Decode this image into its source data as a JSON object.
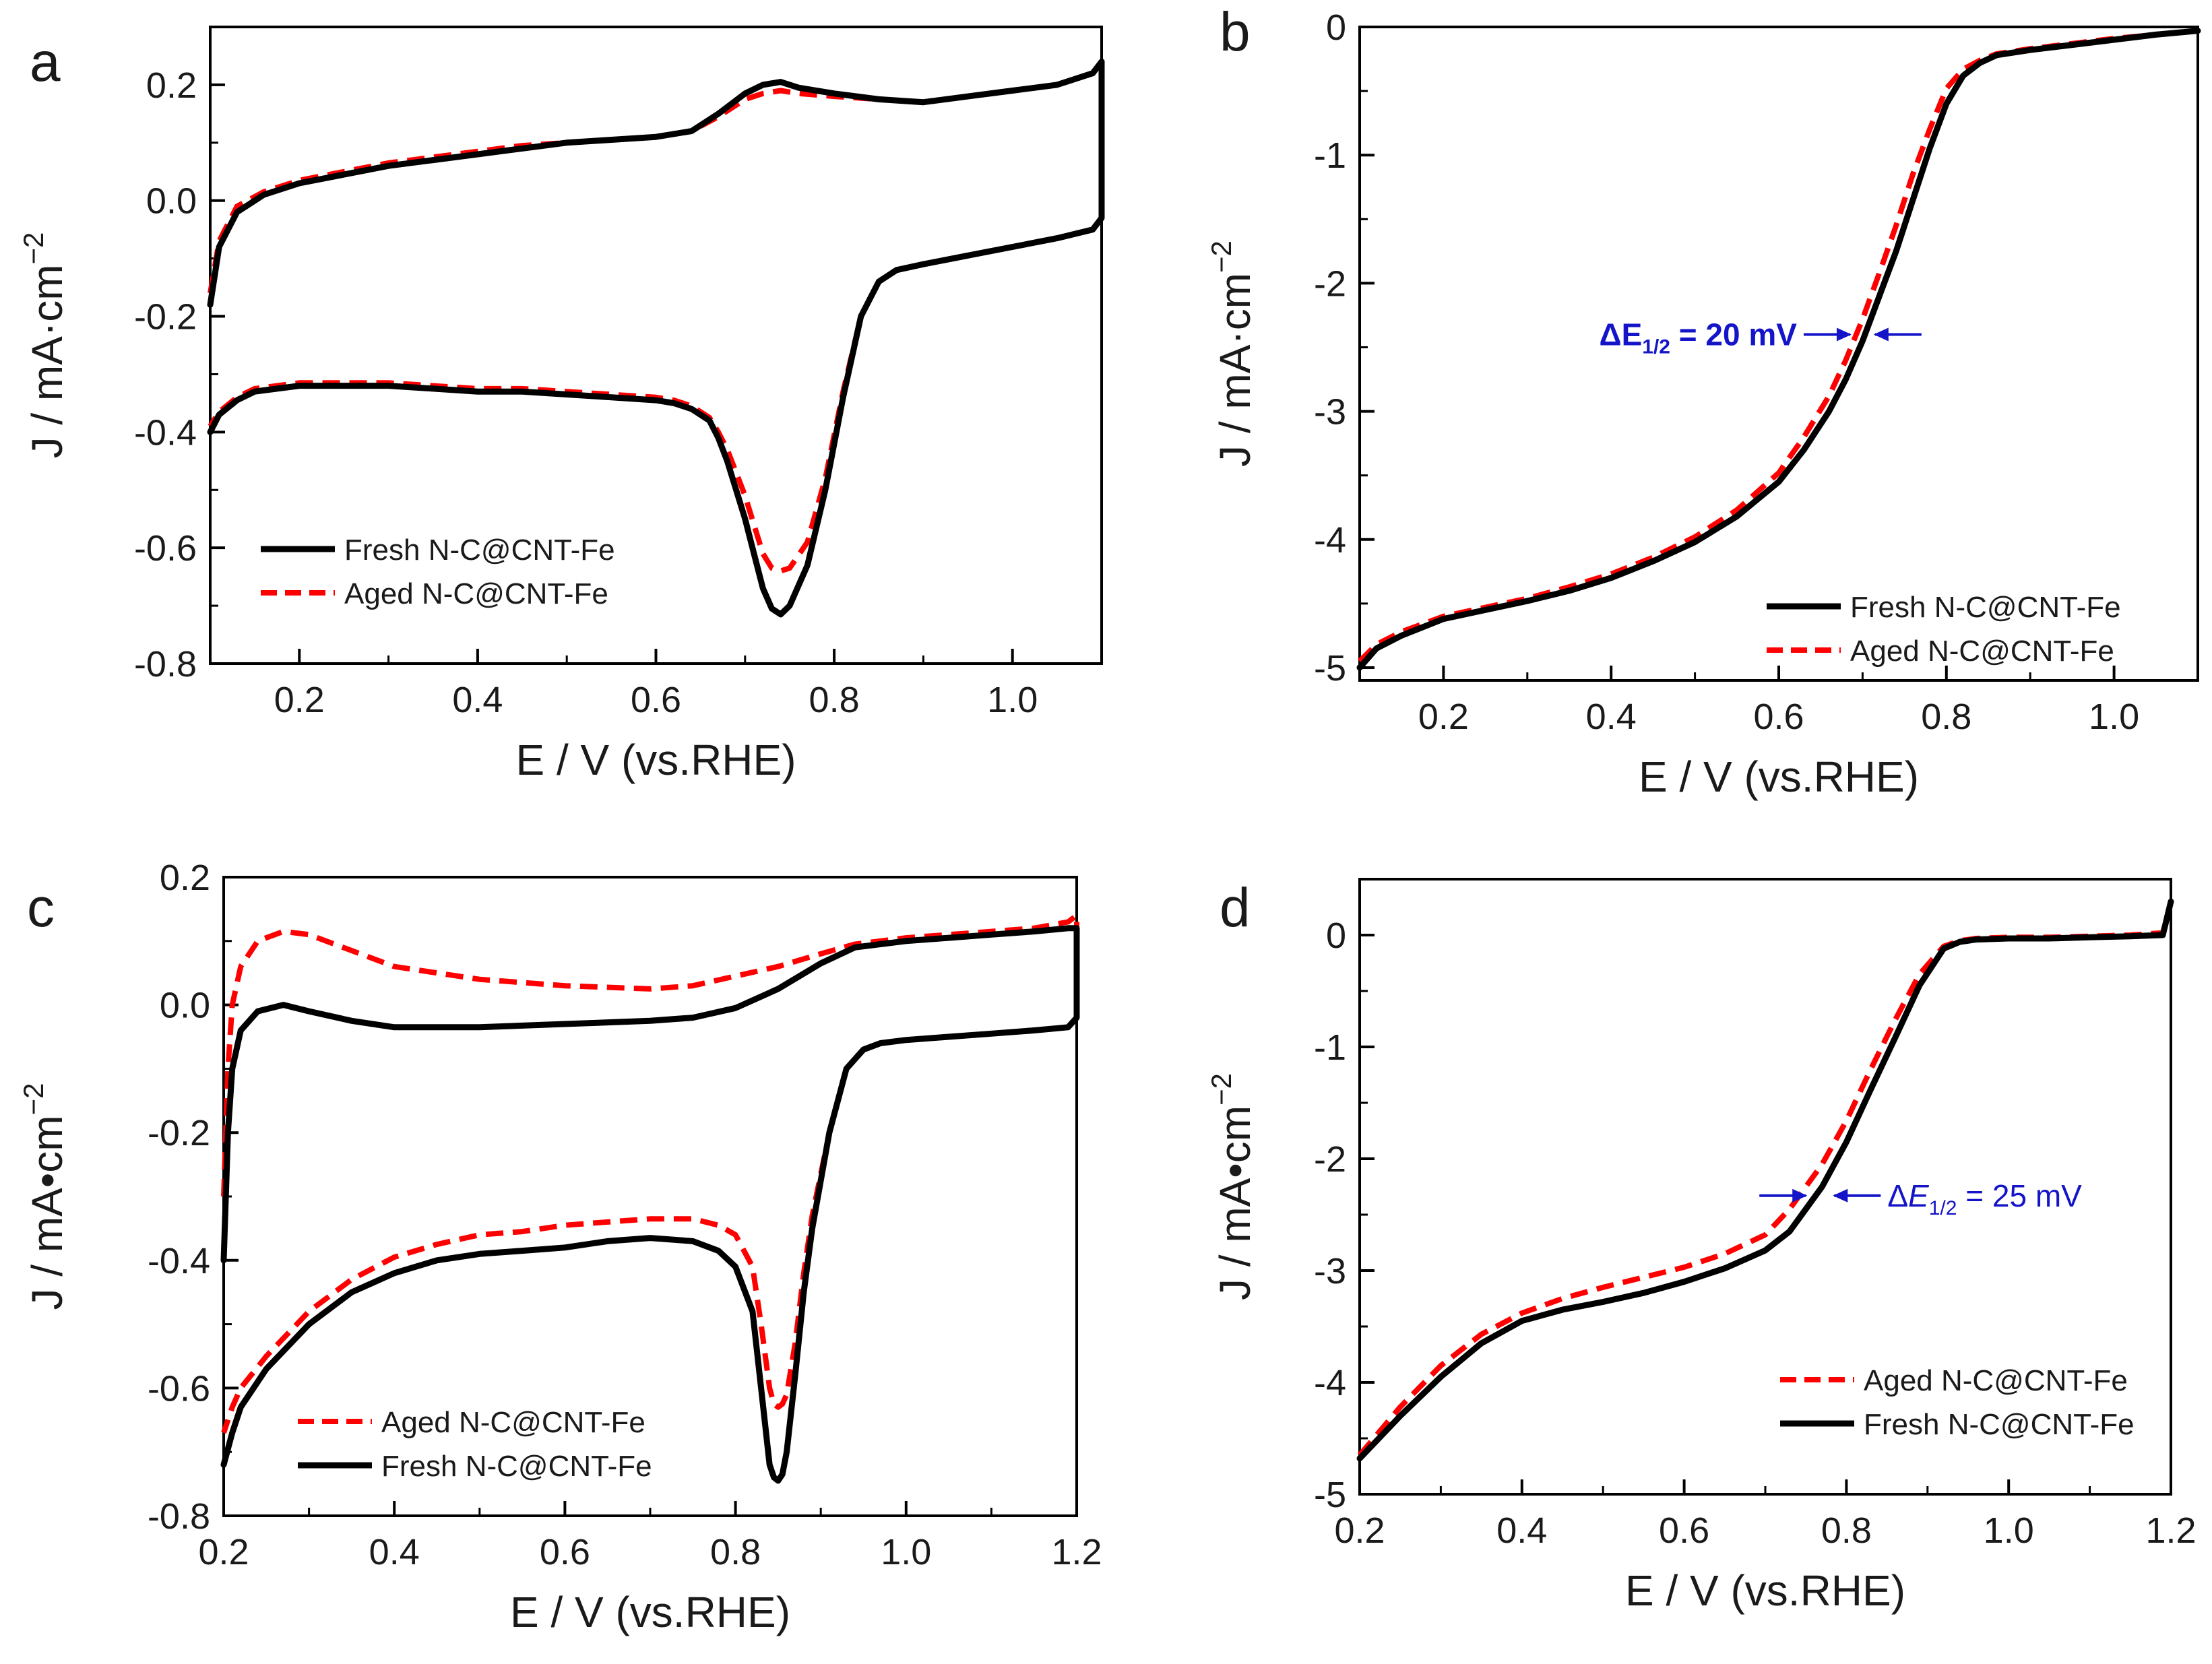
{
  "figure": {
    "background": "#ffffff"
  },
  "styles": {
    "fresh": {
      "color": "#000000",
      "dash": "solid"
    },
    "aged": {
      "color": "#ff0000",
      "dash": "dashed"
    },
    "annotation_color": "#1414c8"
  },
  "chart_data": [
    {
      "id": "a",
      "type": "line",
      "panel_label": "a",
      "xlabel": "E / V (vs.RHE)",
      "ylabel": "J / mA·cm",
      "ylabel_sup": "−2",
      "xlim": [
        0.1,
        1.1
      ],
      "ylim": [
        -0.8,
        0.3
      ],
      "xticks": [
        0.2,
        0.4,
        0.6,
        0.8,
        1.0
      ],
      "xtick_labels": [
        "0.2",
        "0.4",
        "0.6",
        "0.8",
        "1.0"
      ],
      "yticks": [
        -0.8,
        -0.6,
        -0.4,
        -0.2,
        0.0,
        0.2
      ],
      "ytick_labels": [
        "-0.8",
        "-0.6",
        "-0.4",
        "-0.2",
        "0.0",
        "0.2"
      ],
      "legend_position": "bottom-left",
      "legend_order": [
        "fresh",
        "aged"
      ],
      "series": [
        {
          "key": "fresh",
          "name": "Fresh N-C@CNT-Fe",
          "x": [
            0.1,
            0.11,
            0.13,
            0.16,
            0.2,
            0.25,
            0.3,
            0.35,
            0.4,
            0.45,
            0.5,
            0.55,
            0.6,
            0.64,
            0.67,
            0.7,
            0.72,
            0.74,
            0.76,
            0.8,
            0.85,
            0.9,
            0.95,
            1.0,
            1.05,
            1.09,
            1.1,
            1.1,
            1.09,
            1.05,
            1.0,
            0.95,
            0.9,
            0.87,
            0.85,
            0.83,
            0.81,
            0.79,
            0.77,
            0.75,
            0.74,
            0.73,
            0.72,
            0.71,
            0.7,
            0.69,
            0.68,
            0.67,
            0.66,
            0.64,
            0.62,
            0.6,
            0.55,
            0.5,
            0.45,
            0.4,
            0.35,
            0.3,
            0.25,
            0.2,
            0.15,
            0.13,
            0.11,
            0.1
          ],
          "y": [
            -0.18,
            -0.08,
            -0.02,
            0.01,
            0.03,
            0.045,
            0.06,
            0.07,
            0.08,
            0.09,
            0.1,
            0.105,
            0.11,
            0.12,
            0.15,
            0.185,
            0.2,
            0.205,
            0.195,
            0.185,
            0.175,
            0.17,
            0.18,
            0.19,
            0.2,
            0.22,
            0.24,
            -0.03,
            -0.05,
            -0.065,
            -0.08,
            -0.095,
            -0.11,
            -0.12,
            -0.14,
            -0.2,
            -0.34,
            -0.5,
            -0.63,
            -0.7,
            -0.715,
            -0.705,
            -0.67,
            -0.61,
            -0.55,
            -0.5,
            -0.45,
            -0.41,
            -0.38,
            -0.36,
            -0.35,
            -0.345,
            -0.34,
            -0.335,
            -0.33,
            -0.33,
            -0.325,
            -0.32,
            -0.32,
            -0.32,
            -0.33,
            -0.345,
            -0.37,
            -0.4
          ]
        },
        {
          "key": "aged",
          "name": "Aged N-C@CNT-Fe",
          "x": [
            0.1,
            0.11,
            0.13,
            0.16,
            0.2,
            0.25,
            0.3,
            0.35,
            0.4,
            0.45,
            0.5,
            0.55,
            0.6,
            0.64,
            0.67,
            0.7,
            0.72,
            0.74,
            0.76,
            0.8,
            0.85,
            0.9,
            0.95,
            1.0,
            1.05,
            1.09,
            1.1,
            1.1,
            1.09,
            1.05,
            1.0,
            0.95,
            0.9,
            0.87,
            0.85,
            0.83,
            0.81,
            0.79,
            0.77,
            0.75,
            0.74,
            0.73,
            0.72,
            0.71,
            0.7,
            0.69,
            0.68,
            0.67,
            0.66,
            0.64,
            0.62,
            0.6,
            0.55,
            0.5,
            0.45,
            0.4,
            0.35,
            0.3,
            0.25,
            0.2,
            0.15,
            0.13,
            0.11,
            0.1
          ],
          "y": [
            -0.16,
            -0.07,
            -0.01,
            0.015,
            0.035,
            0.05,
            0.065,
            0.075,
            0.085,
            0.095,
            0.1,
            0.105,
            0.11,
            0.12,
            0.145,
            0.175,
            0.185,
            0.19,
            0.185,
            0.18,
            0.175,
            0.17,
            0.18,
            0.19,
            0.2,
            0.22,
            0.24,
            -0.03,
            -0.05,
            -0.065,
            -0.08,
            -0.095,
            -0.11,
            -0.12,
            -0.14,
            -0.2,
            -0.33,
            -0.48,
            -0.59,
            -0.635,
            -0.64,
            -0.635,
            -0.61,
            -0.56,
            -0.51,
            -0.47,
            -0.43,
            -0.4,
            -0.375,
            -0.355,
            -0.345,
            -0.34,
            -0.335,
            -0.33,
            -0.325,
            -0.325,
            -0.32,
            -0.315,
            -0.315,
            -0.315,
            -0.325,
            -0.34,
            -0.365,
            -0.39
          ]
        }
      ]
    },
    {
      "id": "b",
      "type": "line",
      "panel_label": "b",
      "xlabel": "E / V (vs.RHE)",
      "ylabel": "J / mA·cm",
      "ylabel_sup": "−2",
      "xlim": [
        0.1,
        1.1
      ],
      "ylim": [
        -5.1,
        0.0
      ],
      "xticks": [
        0.2,
        0.4,
        0.6,
        0.8,
        1.0
      ],
      "xtick_labels": [
        "0.2",
        "0.4",
        "0.6",
        "0.8",
        "1.0"
      ],
      "yticks": [
        -5,
        -4,
        -3,
        -2,
        -1,
        0
      ],
      "ytick_labels": [
        "-5",
        "-4",
        "-3",
        "-2",
        "-1",
        "0"
      ],
      "legend_position": "bottom-right",
      "legend_order": [
        "fresh",
        "aged"
      ],
      "annotation": {
        "text": "ΔE",
        "sub": "1/2",
        "suffix": " = 20 mV",
        "x_left": 0.69,
        "x_right": 0.71,
        "y": -2.4
      },
      "series": [
        {
          "key": "fresh",
          "name": "Fresh N-C@CNT-Fe",
          "x": [
            0.1,
            0.12,
            0.15,
            0.2,
            0.25,
            0.3,
            0.35,
            0.4,
            0.45,
            0.5,
            0.55,
            0.6,
            0.63,
            0.66,
            0.68,
            0.7,
            0.72,
            0.74,
            0.76,
            0.78,
            0.8,
            0.82,
            0.84,
            0.86,
            0.9,
            0.95,
            1.0,
            1.05,
            1.1
          ],
          "y": [
            -5.0,
            -4.85,
            -4.75,
            -4.62,
            -4.55,
            -4.48,
            -4.4,
            -4.3,
            -4.17,
            -4.02,
            -3.82,
            -3.55,
            -3.3,
            -3.0,
            -2.75,
            -2.45,
            -2.1,
            -1.75,
            -1.35,
            -0.95,
            -0.6,
            -0.38,
            -0.28,
            -0.22,
            -0.18,
            -0.14,
            -0.1,
            -0.06,
            -0.03
          ]
        },
        {
          "key": "aged",
          "name": "Aged N-C@CNT-Fe",
          "x": [
            0.1,
            0.12,
            0.15,
            0.2,
            0.25,
            0.3,
            0.35,
            0.4,
            0.45,
            0.5,
            0.55,
            0.6,
            0.63,
            0.66,
            0.68,
            0.7,
            0.72,
            0.74,
            0.76,
            0.78,
            0.8,
            0.82,
            0.84,
            0.86,
            0.9,
            0.95,
            1.0,
            1.05,
            1.1
          ],
          "y": [
            -4.95,
            -4.82,
            -4.72,
            -4.6,
            -4.53,
            -4.46,
            -4.37,
            -4.27,
            -4.14,
            -3.98,
            -3.77,
            -3.48,
            -3.2,
            -2.88,
            -2.6,
            -2.28,
            -1.92,
            -1.55,
            -1.15,
            -0.8,
            -0.48,
            -0.33,
            -0.26,
            -0.21,
            -0.17,
            -0.13,
            -0.09,
            -0.06,
            -0.03
          ]
        }
      ]
    },
    {
      "id": "c",
      "type": "line",
      "panel_label": "c",
      "xlabel": "E / V (vs.RHE)",
      "ylabel": "J / mA•cm",
      "ylabel_sup": "−2",
      "xlim": [
        0.2,
        1.2
      ],
      "ylim": [
        -0.8,
        0.2
      ],
      "xticks": [
        0.2,
        0.4,
        0.6,
        0.8,
        1.0,
        1.2
      ],
      "xtick_labels": [
        "0.2",
        "0.4",
        "0.6",
        "0.8",
        "1.0",
        "1.2"
      ],
      "yticks": [
        -0.8,
        -0.6,
        -0.4,
        -0.2,
        0.0,
        0.2
      ],
      "ytick_labels": [
        "-0.8",
        "-0.6",
        "-0.4",
        "-0.2",
        "0.0",
        "0.2"
      ],
      "legend_position": "bottom-left",
      "legend_order": [
        "aged",
        "fresh"
      ],
      "series": [
        {
          "key": "fresh",
          "name": "Fresh N-C@CNT-Fe",
          "x": [
            0.2,
            0.205,
            0.21,
            0.22,
            0.24,
            0.27,
            0.3,
            0.35,
            0.4,
            0.5,
            0.6,
            0.7,
            0.75,
            0.8,
            0.85,
            0.9,
            0.94,
            0.97,
            1.0,
            1.05,
            1.1,
            1.15,
            1.19,
            1.2,
            1.2,
            1.19,
            1.15,
            1.1,
            1.05,
            1.0,
            0.97,
            0.95,
            0.93,
            0.91,
            0.89,
            0.88,
            0.87,
            0.86,
            0.855,
            0.85,
            0.845,
            0.84,
            0.83,
            0.82,
            0.8,
            0.78,
            0.75,
            0.7,
            0.65,
            0.6,
            0.55,
            0.5,
            0.45,
            0.4,
            0.35,
            0.3,
            0.25,
            0.22,
            0.21,
            0.2
          ],
          "y": [
            -0.4,
            -0.2,
            -0.1,
            -0.04,
            -0.01,
            0.0,
            -0.01,
            -0.025,
            -0.035,
            -0.035,
            -0.03,
            -0.025,
            -0.02,
            -0.005,
            0.025,
            0.065,
            0.09,
            0.095,
            0.1,
            0.105,
            0.11,
            0.115,
            0.12,
            0.12,
            -0.02,
            -0.035,
            -0.04,
            -0.045,
            -0.05,
            -0.055,
            -0.06,
            -0.07,
            -0.1,
            -0.2,
            -0.35,
            -0.45,
            -0.58,
            -0.7,
            -0.735,
            -0.745,
            -0.74,
            -0.72,
            -0.6,
            -0.48,
            -0.41,
            -0.385,
            -0.37,
            -0.365,
            -0.37,
            -0.38,
            -0.385,
            -0.39,
            -0.4,
            -0.42,
            -0.45,
            -0.5,
            -0.57,
            -0.63,
            -0.67,
            -0.72
          ]
        },
        {
          "key": "aged",
          "name": "Aged N-C@CNT-Fe",
          "x": [
            0.2,
            0.205,
            0.21,
            0.22,
            0.24,
            0.27,
            0.3,
            0.35,
            0.4,
            0.5,
            0.6,
            0.7,
            0.75,
            0.8,
            0.85,
            0.9,
            0.94,
            0.97,
            1.0,
            1.05,
            1.1,
            1.15,
            1.19,
            1.2,
            1.2,
            1.19,
            1.15,
            1.1,
            1.05,
            1.0,
            0.97,
            0.95,
            0.93,
            0.91,
            0.89,
            0.88,
            0.87,
            0.86,
            0.855,
            0.85,
            0.845,
            0.84,
            0.83,
            0.82,
            0.8,
            0.78,
            0.75,
            0.7,
            0.65,
            0.6,
            0.55,
            0.5,
            0.45,
            0.4,
            0.35,
            0.3,
            0.25,
            0.22,
            0.21,
            0.2
          ],
          "y": [
            -0.3,
            -0.1,
            0.0,
            0.06,
            0.1,
            0.115,
            0.11,
            0.085,
            0.06,
            0.04,
            0.03,
            0.025,
            0.03,
            0.045,
            0.06,
            0.08,
            0.095,
            0.1,
            0.105,
            0.11,
            0.115,
            0.12,
            0.13,
            0.14,
            -0.02,
            -0.035,
            -0.04,
            -0.045,
            -0.05,
            -0.055,
            -0.06,
            -0.07,
            -0.1,
            -0.2,
            -0.33,
            -0.42,
            -0.53,
            -0.61,
            -0.625,
            -0.63,
            -0.625,
            -0.6,
            -0.5,
            -0.41,
            -0.36,
            -0.345,
            -0.335,
            -0.335,
            -0.34,
            -0.345,
            -0.355,
            -0.36,
            -0.375,
            -0.395,
            -0.43,
            -0.48,
            -0.55,
            -0.6,
            -0.63,
            -0.67
          ]
        }
      ]
    },
    {
      "id": "d",
      "type": "line",
      "panel_label": "d",
      "xlabel": "E / V (vs.RHE)",
      "ylabel": "J / mA•cm",
      "ylabel_sup": "−2",
      "xlim": [
        0.2,
        1.2
      ],
      "ylim": [
        -5.0,
        0.5
      ],
      "xticks": [
        0.2,
        0.4,
        0.6,
        0.8,
        1.0,
        1.2
      ],
      "xtick_labels": [
        "0.2",
        "0.4",
        "0.6",
        "0.8",
        "1.0",
        "1.2"
      ],
      "yticks": [
        -5,
        -4,
        -3,
        -2,
        -1,
        0
      ],
      "ytick_labels": [
        "-5",
        "-4",
        "-3",
        "-2",
        "-1",
        "0"
      ],
      "legend_position": "bottom-right",
      "legend_order": [
        "aged",
        "fresh"
      ],
      "annotation": {
        "text": "Δ",
        "italic": "E",
        "sub": "1/2",
        "suffix": " = 25 mV",
        "x_left": 0.755,
        "x_right": 0.78,
        "y": -2.33
      },
      "series": [
        {
          "key": "fresh",
          "name": "Fresh N-C@CNT-Fe",
          "x": [
            0.2,
            0.25,
            0.3,
            0.35,
            0.4,
            0.45,
            0.5,
            0.55,
            0.6,
            0.65,
            0.7,
            0.73,
            0.75,
            0.77,
            0.8,
            0.83,
            0.86,
            0.89,
            0.92,
            0.94,
            0.96,
            1.0,
            1.05,
            1.1,
            1.15,
            1.19,
            1.2
          ],
          "y": [
            -4.68,
            -4.3,
            -3.95,
            -3.65,
            -3.45,
            -3.35,
            -3.28,
            -3.2,
            -3.1,
            -2.98,
            -2.82,
            -2.65,
            -2.45,
            -2.25,
            -1.85,
            -1.38,
            -0.92,
            -0.45,
            -0.12,
            -0.06,
            -0.04,
            -0.03,
            -0.03,
            -0.02,
            -0.01,
            0.0,
            0.3
          ]
        },
        {
          "key": "aged",
          "name": "Aged N-C@CNT-Fe",
          "x": [
            0.2,
            0.25,
            0.3,
            0.35,
            0.4,
            0.45,
            0.5,
            0.55,
            0.6,
            0.65,
            0.7,
            0.73,
            0.75,
            0.77,
            0.8,
            0.83,
            0.86,
            0.89,
            0.92,
            0.94,
            0.96,
            1.0,
            1.05,
            1.1,
            1.15,
            1.19,
            1.2
          ],
          "y": [
            -4.65,
            -4.22,
            -3.85,
            -3.57,
            -3.38,
            -3.25,
            -3.15,
            -3.06,
            -2.97,
            -2.85,
            -2.68,
            -2.45,
            -2.25,
            -2.05,
            -1.66,
            -1.2,
            -0.76,
            -0.35,
            -0.1,
            -0.05,
            -0.03,
            -0.02,
            -0.02,
            -0.01,
            0.0,
            0.02,
            0.3
          ]
        }
      ]
    }
  ]
}
